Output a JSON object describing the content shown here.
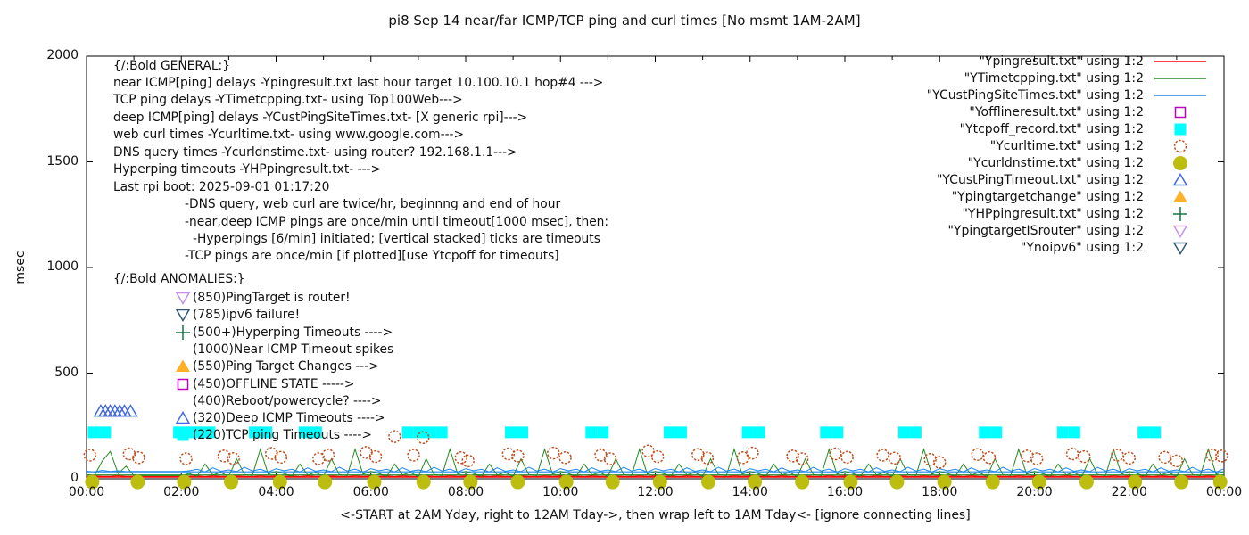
{
  "title": "pi8 Sep 14  near/far ICMP/TCP ping and curl times [No msmt 1AM-2AM]",
  "axes": {
    "ylabel": "msec",
    "xlabel": "<-START at 2AM Yday, right to 12AM Tday->, then wrap left to 1AM Tday<- [ignore connecting lines]",
    "y_ticks": [
      0,
      500,
      1000,
      1500,
      2000
    ],
    "x_tick_labels": [
      "00:00",
      "02:00",
      "04:00",
      "06:00",
      "08:00",
      "10:00",
      "12:00",
      "14:00",
      "16:00",
      "18:00",
      "20:00",
      "22:00",
      "00:00"
    ],
    "ylim": [
      0,
      2000
    ],
    "x_hours": [
      0,
      24
    ]
  },
  "legend": [
    {
      "label": "\"Ypingresult.txt\" using 1:2",
      "style": "line",
      "color": "#ff0000"
    },
    {
      "label": "\"YTimetcpping.txt\" using 1:2",
      "style": "line",
      "color": "#228b22"
    },
    {
      "label": "\"YCustPingSiteTimes.txt\" using 1:2",
      "style": "line",
      "color": "#1c86ee"
    },
    {
      "label": "\"Yofflineresult.txt\" using 1:2",
      "style": "square-open",
      "color": "#bf00bf"
    },
    {
      "label": "\"Ytcpoff_record.txt\" using 1:2",
      "style": "square-filled",
      "color": "#00ffff"
    },
    {
      "label": "\"Ycurltime.txt\" using 1:2",
      "style": "circle-open",
      "color": "#c05020"
    },
    {
      "label": "\"Ycurldnstime.txt\" using 1:2",
      "style": "circle-filled",
      "color": "#bdbd10"
    },
    {
      "label": "\"YCustPingTimeout.txt\" using 1:2",
      "style": "triangle-up-open",
      "color": "#4169e1"
    },
    {
      "label": "\"Ypingtargetchange\" using 1:2",
      "style": "triangle-up-filled",
      "color": "#ffb028"
    },
    {
      "label": "\"YHPpingresult.txt\" using 1:2",
      "style": "plus",
      "color": "#177245"
    },
    {
      "label": "\"YpingtargetISrouter\" using 1:2",
      "style": "triangle-down-open",
      "color": "#c490ec"
    },
    {
      "label": "\"Ynoipv6\" using 1:2",
      "style": "triangle-down-open",
      "color": "#2f5a73"
    }
  ],
  "annotations": {
    "general": [
      {
        "text": "{/:Bold GENERAL:}",
        "indent": 0
      },
      {
        "text": "near ICMP[ping] delays -Ypingresult.txt last hour target 10.100.10.1 hop#4 --->",
        "indent": 0
      },
      {
        "text": "TCP ping delays -YTimetcpping.txt- using Top100Web--->",
        "indent": 0
      },
      {
        "text": "deep ICMP[ping] delays -YCustPingSiteTimes.txt- [X generic rpi]--->",
        "indent": 0
      },
      {
        "text": "web curl times -Ycurltime.txt- using www.google.com--->",
        "indent": 0
      },
      {
        "text": "DNS query times -Ycurldnstime.txt- using router? 192.168.1.1--->",
        "indent": 0
      },
      {
        "text": "Hyperping timeouts -YHPpingresult.txt- --->",
        "indent": 0
      },
      {
        "text": "Last rpi boot: 2025-09-01 01:17:20",
        "indent": 0
      },
      {
        "text": "-DNS query, web curl are twice/hr, beginnng and end of hour",
        "indent": 1
      },
      {
        "text": "-near,deep ICMP pings are once/min until timeout[1000 msec], then:",
        "indent": 1
      },
      {
        "text": "-Hyperpings [6/min] initiated; [vertical stacked] ticks are timeouts",
        "indent": 2
      },
      {
        "text": "-TCP pings are once/min [if plotted][use Ytcpoff for timeouts]",
        "indent": 1
      }
    ],
    "anomalies_header": "{/:Bold ANOMALIES:}",
    "anomalies": [
      {
        "marker": "triangle-down-open",
        "color": "#c490ec",
        "text": "(850)PingTarget is router!"
      },
      {
        "marker": "triangle-down-open",
        "color": "#2f5a73",
        "text": "(785)ipv6 failure!"
      },
      {
        "marker": "plus",
        "color": "#177245",
        "text": "(500+)Hyperping Timeouts ---->"
      },
      {
        "marker": "none",
        "color": "",
        "text": "(1000)Near ICMP Timeout spikes"
      },
      {
        "marker": "triangle-up-filled",
        "color": "#ffb028",
        "text": "(550)Ping Target Changes --->"
      },
      {
        "marker": "square-open",
        "color": "#bf00bf",
        "text": "(450)OFFLINE STATE ----->"
      },
      {
        "marker": "none",
        "color": "",
        "text": "(400)Reboot/powercycle? ---->"
      },
      {
        "marker": "triangle-up-open",
        "color": "#4169e1",
        "text": "(320)Deep ICMP Timeouts ---->"
      },
      {
        "marker": "square-filled",
        "color": "#00ffff",
        "text": "(220)TCP ping Timeouts ---->"
      }
    ]
  },
  "chart_data": {
    "type": "line",
    "title": "pi8 Sep 14  near/far ICMP/TCP ping and curl times [No msmt 1AM-2AM]",
    "xlabel": "<-START at 2AM Yday, right to 12AM Tday->, then wrap left to 1AM Tday<- [ignore connecting lines]",
    "ylabel": "msec",
    "ylim": [
      0,
      2000
    ],
    "x_start_hour": 0,
    "x_end_hour": 24,
    "sample_step_min": 10,
    "legend_position": "inside-top-right",
    "grid": false,
    "wrap_connector_lines": [
      {
        "color": "#1c86ee",
        "value": 33
      },
      {
        "color": "#228b22",
        "value": 18
      },
      {
        "color": "#ff0000",
        "value": 8
      }
    ],
    "series": [
      {
        "name": "Ypingresult.txt",
        "style": "line",
        "color": "#ff0000",
        "values": [
          12,
          13,
          12,
          12,
          14,
          12,
          12,
          12,
          12,
          12,
          12,
          12,
          12,
          12,
          13,
          11,
          14,
          12,
          12,
          13,
          12,
          11,
          14,
          12,
          13,
          12,
          13,
          11,
          14,
          12,
          12,
          13,
          12,
          11,
          14,
          12,
          13,
          12,
          13,
          11,
          14,
          12,
          12,
          13,
          12,
          11,
          14,
          12,
          13,
          12,
          13,
          11,
          14,
          12,
          12,
          13,
          12,
          11,
          14,
          12,
          13,
          12,
          13,
          11,
          14,
          12,
          12,
          13,
          12,
          11,
          14,
          12,
          13,
          12,
          13,
          11,
          14,
          12,
          12,
          13,
          12,
          11,
          14,
          12,
          13,
          12,
          13,
          11,
          14,
          12,
          12,
          13,
          12,
          11,
          14,
          12,
          13,
          12,
          13,
          11,
          14,
          12,
          12,
          13,
          12,
          11,
          14,
          12,
          13,
          12,
          13,
          11,
          14,
          12,
          12,
          13,
          12,
          11,
          14,
          12,
          13,
          12,
          13,
          11,
          14,
          12,
          12,
          13,
          12,
          11,
          14,
          12,
          13,
          12,
          13,
          11,
          14,
          12,
          12,
          13,
          12,
          11,
          14,
          12,
          13
        ]
      },
      {
        "name": "YTimetcpping.txt",
        "style": "line",
        "color": "#228b22",
        "values": [
          20,
          15,
          85,
          130,
          25,
          60,
          15,
          15,
          15,
          15,
          15,
          15,
          15,
          25,
          12,
          70,
          18,
          30,
          10,
          95,
          20,
          15,
          140,
          22,
          35,
          25,
          12,
          70,
          18,
          30,
          10,
          95,
          20,
          15,
          140,
          22,
          35,
          25,
          12,
          70,
          18,
          30,
          10,
          95,
          20,
          15,
          140,
          22,
          35,
          25,
          12,
          70,
          18,
          30,
          10,
          95,
          20,
          15,
          140,
          22,
          35,
          25,
          12,
          70,
          18,
          30,
          10,
          95,
          20,
          15,
          140,
          22,
          35,
          25,
          12,
          70,
          18,
          30,
          10,
          95,
          20,
          15,
          140,
          22,
          35,
          25,
          12,
          70,
          18,
          30,
          10,
          95,
          20,
          15,
          140,
          22,
          35,
          25,
          12,
          70,
          18,
          30,
          10,
          95,
          20,
          15,
          140,
          22,
          35,
          25,
          12,
          70,
          18,
          30,
          10,
          95,
          20,
          15,
          140,
          22,
          35,
          25,
          12,
          70,
          18,
          30,
          10,
          95,
          20,
          15,
          140,
          22,
          35,
          25,
          12,
          70,
          18,
          30,
          10,
          95,
          20,
          15,
          140,
          22,
          35
        ]
      },
      {
        "name": "YCustPingSiteTimes.txt",
        "style": "line",
        "color": "#1c86ee",
        "values": [
          36,
          33,
          40,
          35,
          38,
          34,
          35,
          35,
          35,
          35,
          35,
          35,
          35,
          38,
          45,
          33,
          52,
          36,
          42,
          34,
          55,
          37,
          46,
          32,
          48,
          38,
          45,
          33,
          52,
          36,
          42,
          34,
          55,
          37,
          46,
          32,
          48,
          38,
          45,
          33,
          52,
          36,
          42,
          34,
          55,
          37,
          46,
          32,
          48,
          38,
          45,
          33,
          52,
          36,
          42,
          34,
          55,
          37,
          46,
          32,
          48,
          38,
          45,
          33,
          52,
          36,
          42,
          34,
          55,
          37,
          46,
          32,
          48,
          38,
          45,
          33,
          52,
          36,
          42,
          34,
          55,
          37,
          46,
          32,
          48,
          38,
          45,
          33,
          52,
          36,
          42,
          34,
          55,
          37,
          46,
          32,
          48,
          38,
          45,
          33,
          52,
          36,
          42,
          34,
          55,
          37,
          46,
          32,
          48,
          38,
          45,
          33,
          52,
          36,
          42,
          34,
          55,
          37,
          46,
          32,
          48,
          38,
          45,
          33,
          52,
          36,
          42,
          34,
          55,
          37,
          46,
          32,
          48,
          38,
          45,
          33,
          52,
          36,
          42,
          34,
          55,
          37,
          46,
          32,
          48
        ]
      },
      {
        "name": "Yofflineresult.txt",
        "style": "square-open",
        "color": "#bf00bf",
        "points": []
      },
      {
        "name": "Ytcpoff_record.txt",
        "style": "square-filled",
        "color": "#00ffff",
        "value": 220,
        "groups": [
          [
            0.15,
            0.62
          ],
          [
            1.95,
            2.25
          ],
          [
            2.35,
            2.68
          ],
          [
            3.55,
            3.92
          ],
          [
            4.6,
            4.98
          ],
          [
            6.78,
            7.1
          ],
          [
            7.25,
            7.6
          ],
          [
            8.95,
            9.4
          ],
          [
            10.65,
            11.05
          ],
          [
            12.3,
            12.72
          ],
          [
            13.95,
            14.38
          ],
          [
            15.6,
            16.02
          ],
          [
            17.25,
            17.68
          ],
          [
            18.95,
            19.35
          ],
          [
            20.6,
            21.0
          ],
          [
            22.3,
            22.7
          ]
        ]
      },
      {
        "name": "Ycurltime.txt",
        "style": "circle-open",
        "color": "#c05020",
        "points": [
          [
            0.07,
            112
          ],
          [
            0.9,
            118
          ],
          [
            1.1,
            100
          ],
          [
            2.1,
            95
          ],
          [
            2.9,
            108
          ],
          [
            3.1,
            96
          ],
          [
            3.9,
            120
          ],
          [
            4.1,
            102
          ],
          [
            4.9,
            95
          ],
          [
            5.1,
            112
          ],
          [
            5.9,
            125
          ],
          [
            6.1,
            105
          ],
          [
            6.5,
            200
          ],
          [
            6.9,
            112
          ],
          [
            7.1,
            195
          ],
          [
            7.9,
            100
          ],
          [
            8.05,
            85
          ],
          [
            8.9,
            118
          ],
          [
            9.1,
            108
          ],
          [
            9.85,
            122
          ],
          [
            10.1,
            100
          ],
          [
            10.85,
            112
          ],
          [
            11.05,
            95
          ],
          [
            11.85,
            132
          ],
          [
            12.05,
            105
          ],
          [
            12.9,
            115
          ],
          [
            13.1,
            98
          ],
          [
            13.85,
            100
          ],
          [
            14.05,
            122
          ],
          [
            14.9,
            108
          ],
          [
            15.1,
            95
          ],
          [
            15.8,
            118
          ],
          [
            16.05,
            102
          ],
          [
            16.8,
            112
          ],
          [
            17.05,
            98
          ],
          [
            17.8,
            92
          ],
          [
            18.0,
            78
          ],
          [
            18.8,
            115
          ],
          [
            19.05,
            100
          ],
          [
            19.85,
            108
          ],
          [
            20.05,
            95
          ],
          [
            20.8,
            118
          ],
          [
            21.05,
            105
          ],
          [
            21.75,
            112
          ],
          [
            22.0,
            98
          ],
          [
            22.75,
            102
          ],
          [
            23.0,
            85
          ],
          [
            23.75,
            112
          ],
          [
            23.95,
            108
          ]
        ]
      },
      {
        "name": "Ycurldnstime.txt",
        "style": "circle-filled",
        "color": "#bdbd10",
        "points": [
          [
            0.12,
            -15
          ],
          [
            1.08,
            -15
          ],
          [
            2.06,
            -15
          ],
          [
            3.05,
            -15
          ],
          [
            4.08,
            -15
          ],
          [
            5.03,
            -15
          ],
          [
            6.07,
            -15
          ],
          [
            7.11,
            -15
          ],
          [
            8.1,
            -15
          ],
          [
            9.1,
            -15
          ],
          [
            10.12,
            -15
          ],
          [
            11.1,
            -15
          ],
          [
            12.1,
            -15
          ],
          [
            13.12,
            -15
          ],
          [
            14.1,
            -15
          ],
          [
            15.1,
            -15
          ],
          [
            16.12,
            -15
          ],
          [
            17.1,
            -15
          ],
          [
            18.1,
            -15
          ],
          [
            19.12,
            -15
          ],
          [
            20.1,
            -15
          ],
          [
            21.1,
            -15
          ],
          [
            22.12,
            -15
          ],
          [
            23.1,
            -15
          ],
          [
            23.92,
            -15
          ]
        ]
      },
      {
        "name": "YCustPingTimeout.txt",
        "style": "triangle-up-open",
        "color": "#4169e1",
        "points": [
          [
            0.3,
            320
          ],
          [
            0.4,
            320
          ],
          [
            0.5,
            320
          ],
          [
            0.6,
            320
          ],
          [
            0.7,
            320
          ],
          [
            0.8,
            320
          ],
          [
            0.93,
            320
          ]
        ]
      },
      {
        "name": "Ypingtargetchange",
        "style": "triangle-up-filled",
        "color": "#ffb028",
        "points": []
      },
      {
        "name": "YHPpingresult.txt",
        "style": "plus",
        "color": "#177245",
        "points": []
      },
      {
        "name": "YpingtargetISrouter",
        "style": "triangle-down-open",
        "color": "#c490ec",
        "points": []
      },
      {
        "name": "Ynoipv6",
        "style": "triangle-down-open",
        "color": "#2f5a73",
        "points": []
      }
    ]
  }
}
